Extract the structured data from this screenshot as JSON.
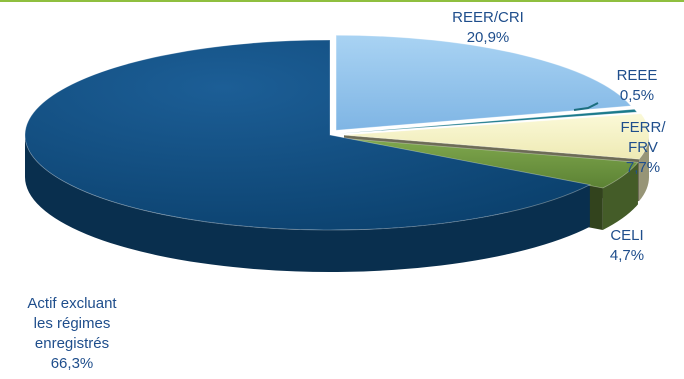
{
  "chart_data": {
    "type": "pie",
    "style": "3d-exploded",
    "slices": [
      {
        "name": "REER/CRI",
        "value": 20.9,
        "value_label": "20,9%",
        "color": "#8EC4EE",
        "label_lines": [
          "REER/CRI"
        ]
      },
      {
        "name": "REEE",
        "value": 0.5,
        "value_label": "0,5%",
        "color": "#1B7A8C",
        "label_lines": [
          "REEE"
        ]
      },
      {
        "name": "FERR/FRV",
        "value": 7.7,
        "value_label": "7,7%",
        "color": "#F3F0C0",
        "label_lines": [
          "FERR/",
          "FRV"
        ]
      },
      {
        "name": "CELI",
        "value": 4.7,
        "value_label": "4,7%",
        "color": "#6E9540",
        "label_lines": [
          "CELI"
        ]
      },
      {
        "name": "Actif excluant les régimes enregistrés",
        "value": 66.3,
        "value_label": "66,3%",
        "color": "#0F4C7E",
        "label_lines": [
          "Actif excluant",
          "les régimes",
          "enregistrés"
        ]
      }
    ],
    "colors": {
      "top_rule": "#8FBF3F",
      "label_text": "#1F4E8C",
      "leader_line": "#1B6E7E"
    }
  }
}
